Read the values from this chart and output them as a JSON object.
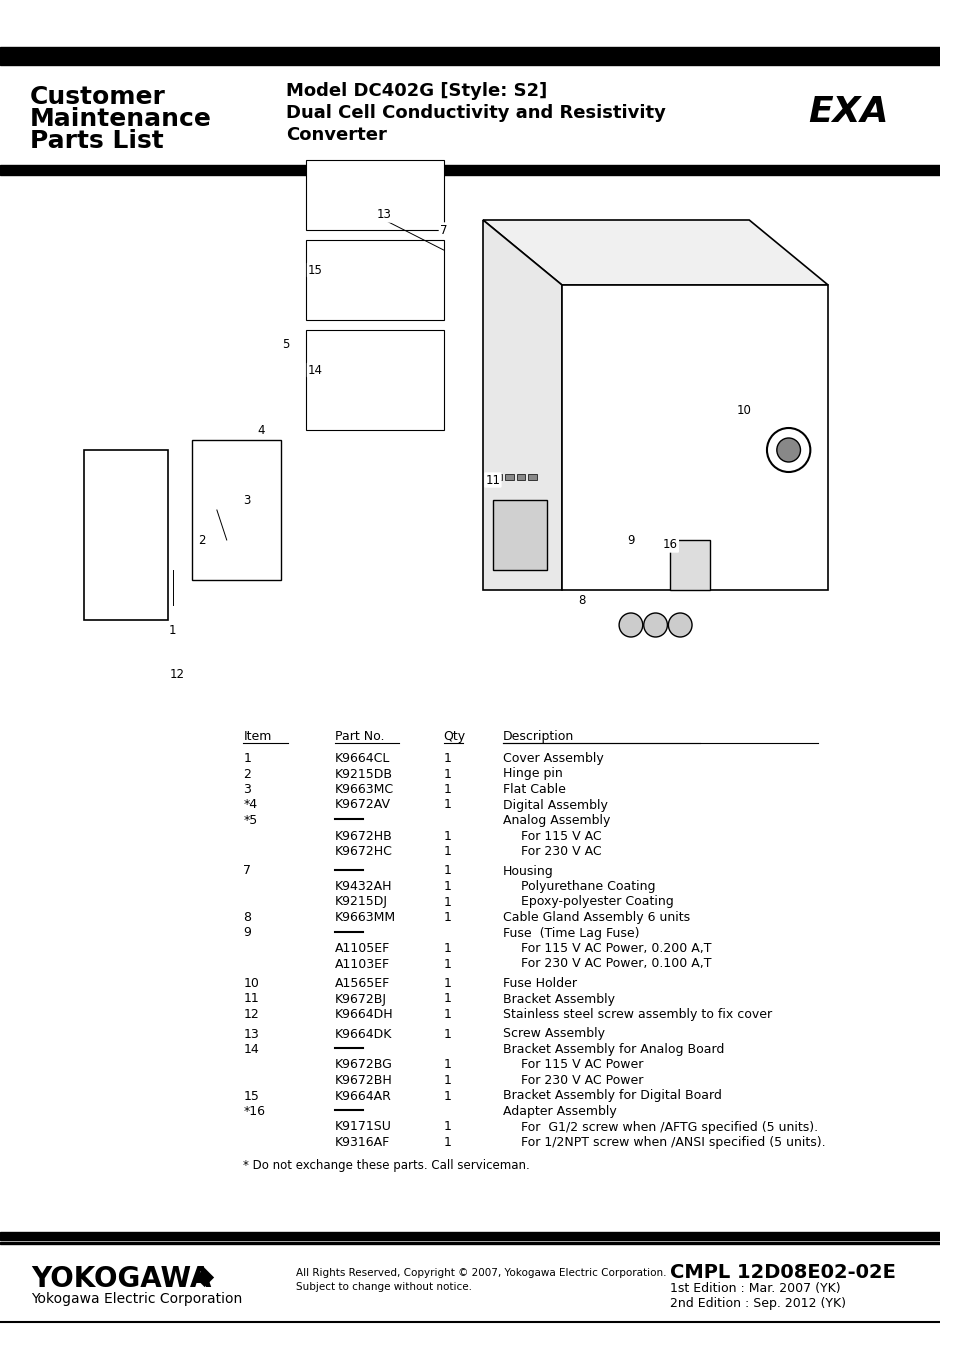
{
  "title_left_line1": "Customer",
  "title_left_line2": "Maintenance",
  "title_left_line3": "Parts List",
  "model_line1": "Model DC402G [Style: S2]",
  "model_line2": "Dual Cell Conductivity and Resistivity",
  "model_line3": "Converter",
  "exa_logo": "EXA",
  "table_headers": [
    "Item",
    "Part No.",
    "Qty",
    "Description"
  ],
  "table_rows": [
    [
      "1",
      "K9664CL",
      "1",
      "Cover Assembly",
      "",
      false
    ],
    [
      "2",
      "K9215DB",
      "1",
      "Hinge pin",
      "",
      false
    ],
    [
      "3",
      "K9663MC",
      "1",
      "Flat Cable",
      "",
      false
    ],
    [
      "*4",
      "K9672AV",
      "1",
      "Digital Assembly",
      "",
      false
    ],
    [
      "*5",
      "—",
      "",
      "Analog Assembly",
      "",
      false
    ],
    [
      "",
      "K9672HB",
      "1",
      "For 115 V AC",
      "",
      true
    ],
    [
      "",
      "K9672HC",
      "1",
      "For 230 V AC",
      "",
      true
    ],
    [
      "",
      "",
      "",
      "",
      "",
      false
    ],
    [
      "7",
      "—",
      "1",
      "Housing",
      "",
      false
    ],
    [
      "",
      "K9432AH",
      "1",
      "Polyurethane Coating",
      "",
      true
    ],
    [
      "",
      "K9215DJ",
      "1",
      "Epoxy-polyester Coating",
      "",
      true
    ],
    [
      "8",
      "K9663MM",
      "1",
      "Cable Gland Assembly 6 units",
      "",
      false
    ],
    [
      "9",
      "—",
      "",
      "Fuse  (Time Lag Fuse)",
      "",
      false
    ],
    [
      "",
      "A1105EF",
      "1",
      "For 115 V AC Power, 0.200 A,T",
      "",
      true
    ],
    [
      "",
      "A1103EF",
      "1",
      "For 230 V AC Power, 0.100 A,T",
      "",
      true
    ],
    [
      "",
      "",
      "",
      "",
      "",
      false
    ],
    [
      "10",
      "A1565EF",
      "1",
      "Fuse Holder",
      "",
      false
    ],
    [
      "11",
      "K9672BJ",
      "1",
      "Bracket Assembly",
      "",
      false
    ],
    [
      "12",
      "K9664DH",
      "1",
      "Stainless steel screw assembly to fix cover",
      "",
      false
    ],
    [
      "",
      "",
      "",
      "",
      "",
      false
    ],
    [
      "13",
      "K9664DK",
      "1",
      "Screw Assembly",
      "",
      false
    ],
    [
      "14",
      "—",
      "",
      "Bracket Assembly for Analog Board",
      "",
      false
    ],
    [
      "",
      "K9672BG",
      "1",
      "For 115 V AC Power",
      "",
      true
    ],
    [
      "",
      "K9672BH",
      "1",
      "For 230 V AC Power",
      "",
      true
    ],
    [
      "15",
      "K9664AR",
      "1",
      "Bracket Assembly for Digital Board",
      "",
      false
    ],
    [
      "*16",
      "—",
      "",
      "Adapter Assembly",
      "",
      false
    ],
    [
      "",
      "K9171SU",
      "1",
      "For  G1/2 screw when /AFTG specified (5 units).",
      "",
      true
    ],
    [
      "",
      "K9316AF",
      "1",
      "For 1/2NPT screw when /ANSI specified (5 units).",
      "",
      true
    ]
  ],
  "footnote": "* Do not exchange these parts. Call serviceman.",
  "footer_company": "YOKOGAWA",
  "footer_sub": "Yokogawa Electric Corporation",
  "footer_copyright": "All Rights Reserved, Copyright © 2007, Yokogawa Electric Corporation.\nSubject to change without notice.",
  "footer_doc": "CMPL 12D08E02-02E",
  "footer_edition1": "1st Edition : Mar. 2007 (YK)",
  "footer_edition2": "2nd Edition : Sep. 2012 (YK)",
  "bg_color": "#ffffff",
  "header_bar_color": "#000000",
  "footer_bar_color": "#000000",
  "text_color": "#000000"
}
